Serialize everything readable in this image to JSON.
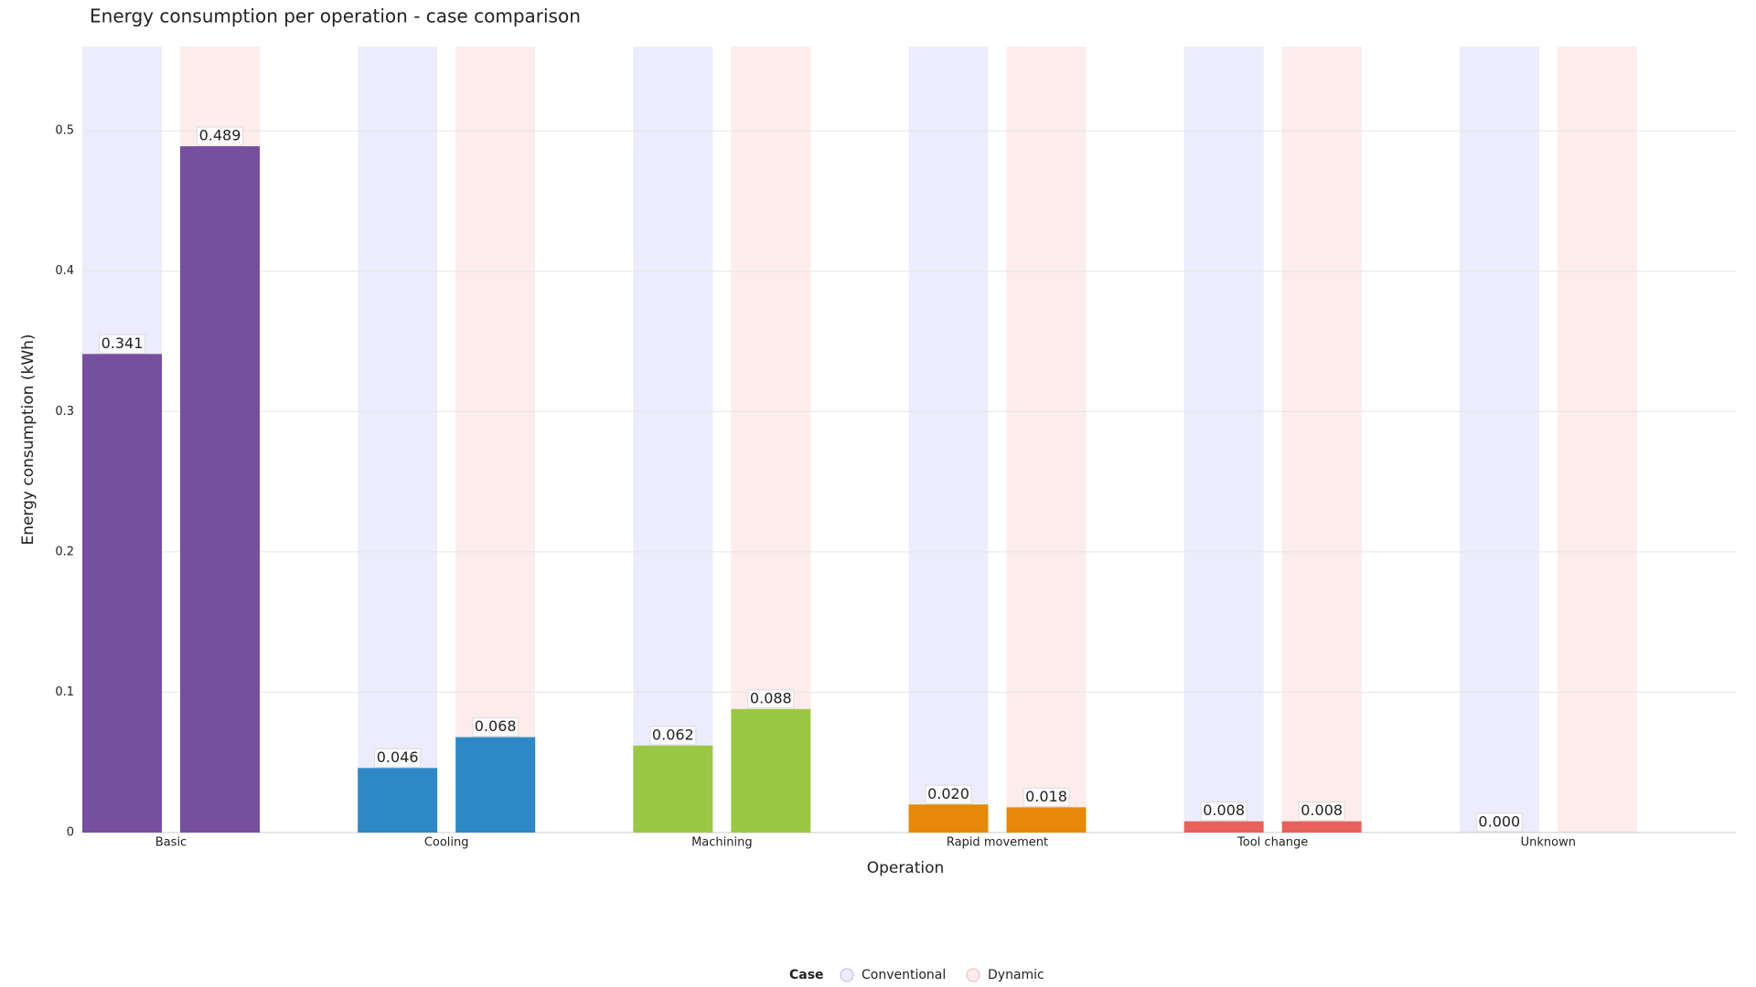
{
  "chart_data": {
    "type": "bar",
    "title": "Energy consumption per operation - case comparison",
    "x_label": "Operation",
    "y_label": "Energy consumption (kWh)",
    "categories": [
      "Basic",
      "Cooling",
      "Machining",
      "Rapid movement",
      "Tool change",
      "Unknown"
    ],
    "bar_colors": [
      "#774f9f",
      "#2e88c5",
      "#9bc844",
      "#e6890a",
      "#e8625c",
      "#9467bd"
    ],
    "series": [
      {
        "name": "Conventional",
        "color": "#ececfc",
        "values": [
          0.341,
          0.046,
          0.062,
          0.02,
          0.008,
          0.0
        ],
        "value_labels": [
          "0.341",
          "0.046",
          "0.062",
          "0.020",
          "0.008",
          "0.000"
        ]
      },
      {
        "name": "Dynamic",
        "color": "#fdecec",
        "values": [
          0.489,
          0.068,
          0.088,
          0.018,
          0.008,
          null
        ],
        "value_labels": [
          "0.489",
          "0.068",
          "0.088",
          "0.018",
          "0.008",
          null
        ]
      }
    ],
    "ylim": [
      0,
      0.56
    ],
    "yticks": [
      0,
      0.1,
      0.2,
      0.3,
      0.4,
      0.5
    ],
    "grid": true,
    "legend": {
      "title": "Case",
      "position": "bottom"
    }
  }
}
